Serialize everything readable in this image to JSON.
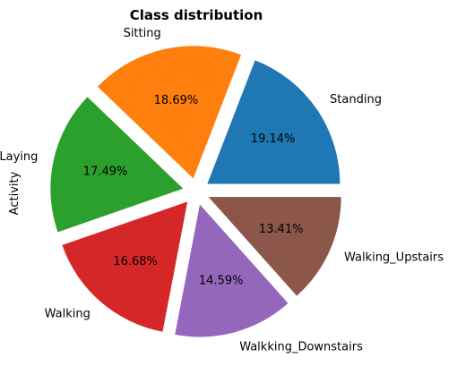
{
  "chart_data": {
    "type": "pie",
    "title": "Class distribution",
    "ylabel": "Activity",
    "start_angle_deg": 0,
    "direction": "counterclockwise",
    "exploded": true,
    "slices": [
      {
        "label": "Standing",
        "value": 19.14,
        "pct_label": "19.14%",
        "color": "#1f77b4"
      },
      {
        "label": "Sitting",
        "value": 18.69,
        "pct_label": "18.69%",
        "color": "#ff7f0e"
      },
      {
        "label": "Laying",
        "value": 17.49,
        "pct_label": "17.49%",
        "color": "#2ca02c"
      },
      {
        "label": "Walking",
        "value": 16.68,
        "pct_label": "16.68%",
        "color": "#d62728"
      },
      {
        "label": "Walkking_Downstairs",
        "value": 14.59,
        "pct_label": "14.59%",
        "color": "#9467bd"
      },
      {
        "label": "Walking_Upstairs",
        "value": 13.41,
        "pct_label": "13.41%",
        "color": "#8c564b"
      }
    ]
  }
}
